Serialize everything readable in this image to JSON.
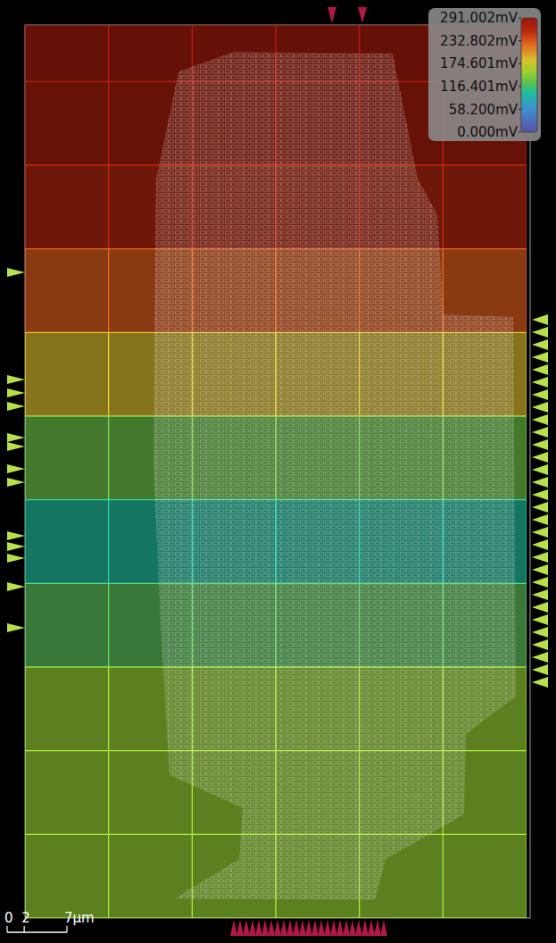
{
  "chart_data": {
    "type": "heatmap",
    "cells": [
      [
        280,
        280,
        280,
        280,
        280,
        280
      ],
      [
        276,
        276,
        276,
        276,
        276,
        276
      ],
      [
        262,
        262,
        262,
        262,
        262,
        262
      ],
      [
        228,
        228,
        228,
        228,
        228,
        228
      ],
      [
        185,
        185,
        185,
        185,
        185,
        185
      ],
      [
        132,
        132,
        132,
        132,
        132,
        132
      ],
      [
        100,
        100,
        100,
        100,
        100,
        100
      ],
      [
        125,
        125,
        125,
        125,
        125,
        125
      ],
      [
        150,
        150,
        150,
        150,
        150,
        150
      ],
      [
        150,
        150,
        150,
        150,
        150,
        150
      ],
      [
        150,
        150,
        150,
        150,
        150,
        150
      ]
    ],
    "colorbar": {
      "range": [
        0,
        291.002
      ],
      "ticks": [
        {
          "value": 291.002,
          "label": "291.002mV"
        },
        {
          "value": 232.802,
          "label": "232.802mV"
        },
        {
          "value": 174.601,
          "label": "174.601mV"
        },
        {
          "value": 116.401,
          "label": "116.401mV"
        },
        {
          "value": 58.2,
          "label": "58.200mV"
        },
        {
          "value": 0,
          "label": "0.000mV"
        }
      ]
    },
    "scale_bar": {
      "ticks": [
        0,
        2,
        {
          "value": 7,
          "label": "7μm"
        }
      ]
    }
  }
}
